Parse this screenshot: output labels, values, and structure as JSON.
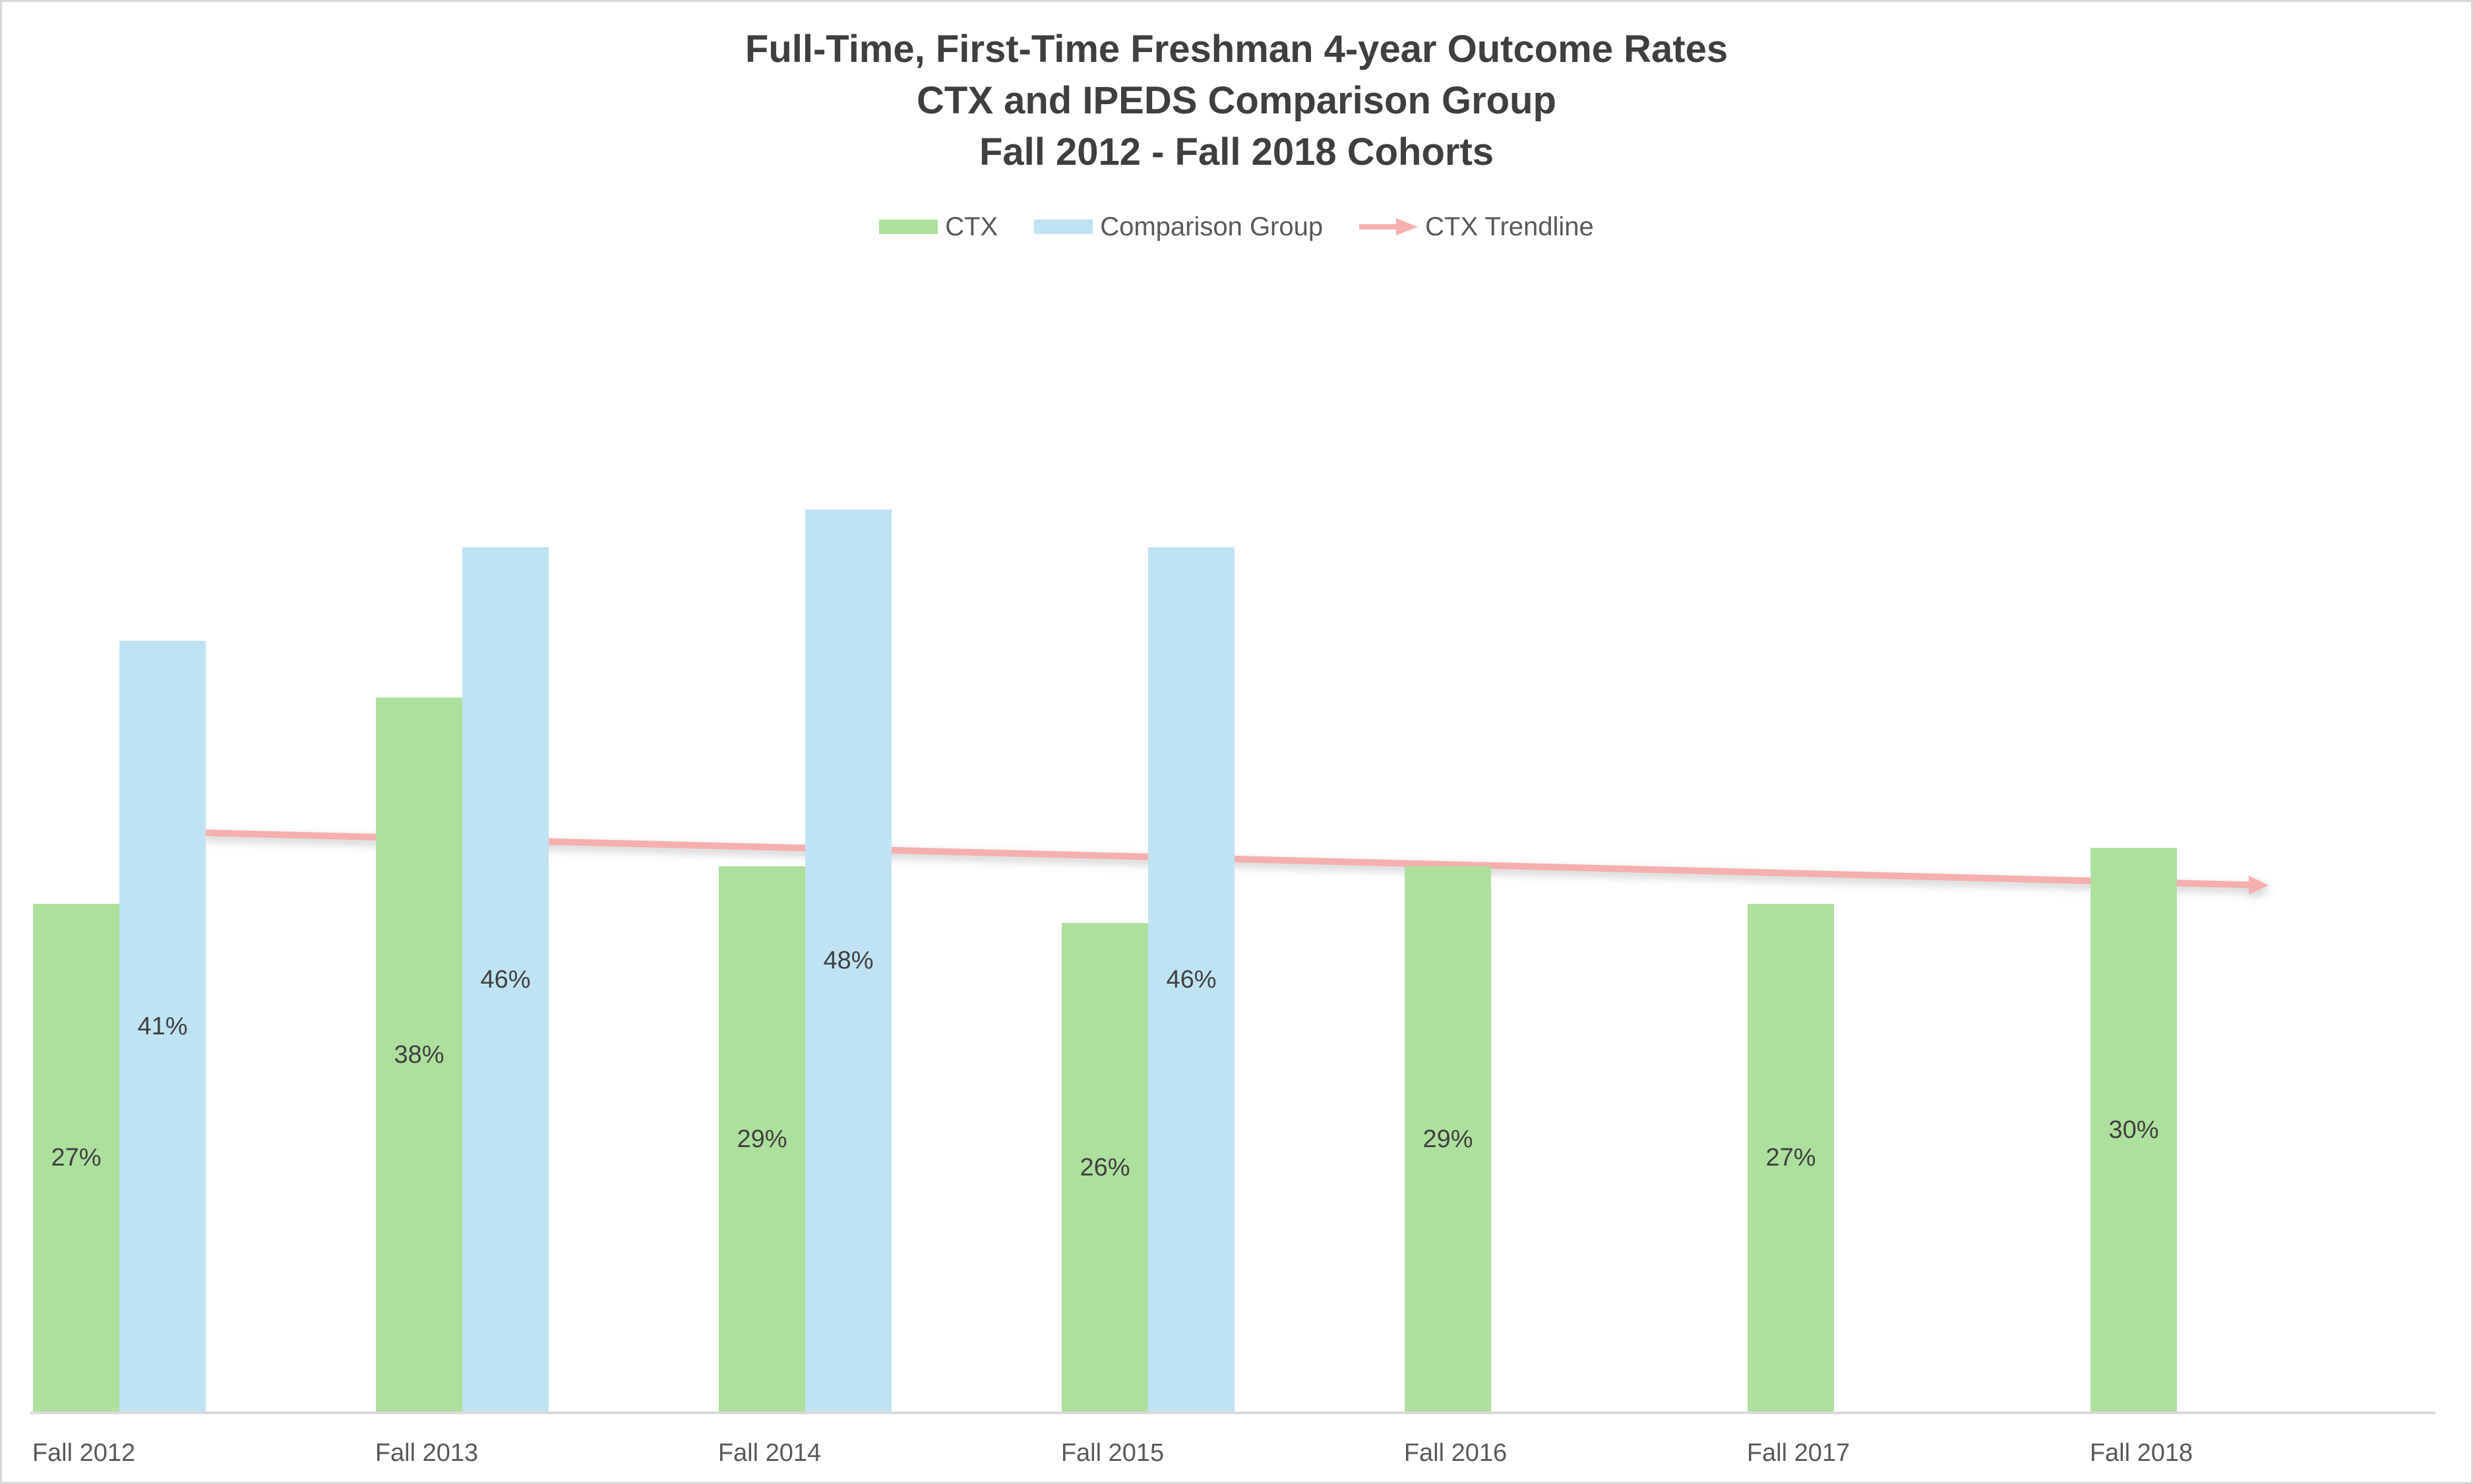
{
  "window": {
    "background": "#FFFFFF",
    "border_color": "#D8D8D8"
  },
  "title": {
    "lines": [
      "Full-Time, First-Time Freshman 4-year Outcome Rates",
      "CTX and IPEDS Comparison Group",
      "Fall 2012 - Fall 2018 Cohorts"
    ],
    "color": "#3F3F3F"
  },
  "legend": {
    "position": "top",
    "items": [
      {
        "label": "CTX",
        "swatch": "square",
        "color": "#ADE09D"
      },
      {
        "label": "Comparison Group",
        "swatch": "square",
        "color": "#BFE3F3"
      },
      {
        "label": "CTX Trendline",
        "swatch": "arrow",
        "color": "#F5AFAF"
      }
    ]
  },
  "chart_data": {
    "type": "bar",
    "title": "Full-Time, First-Time Freshman 4-year Outcome Rates; CTX and IPEDS Comparison Group; Fall 2012 - Fall 2018 Cohorts",
    "categories": [
      "Fall 2012",
      "Fall 2013",
      "Fall 2014",
      "Fall 2015",
      "Fall 2016",
      "Fall 2017",
      "Fall 2018"
    ],
    "series": [
      {
        "name": "CTX",
        "color": "#ADE09D",
        "values": [
          27,
          38,
          29,
          26,
          29,
          27,
          30
        ],
        "labels": [
          "27%",
          "38%",
          "29%",
          "26%",
          "29%",
          "27%",
          "30%"
        ]
      },
      {
        "name": "Comparison Group",
        "color": "#BFE3F3",
        "values": [
          41,
          46,
          48,
          46,
          null,
          null,
          null
        ],
        "labels": [
          "41%",
          "46%",
          "48%",
          "46%",
          null,
          null,
          null
        ]
      }
    ],
    "trendline": {
      "name": "CTX Trendline",
      "color": "#F5AFAF",
      "start_value_pct": 30.8,
      "end_value_pct": 28.0,
      "arrow_at_end": true
    },
    "xlabel": "",
    "ylabel": "",
    "ylim": [
      0,
      50
    ],
    "y_axis_visible": false,
    "gridlines": false,
    "data_label_position": "center",
    "legend_position": "top",
    "axis_line_color": "#D9D9D9",
    "axis_label_color": "#595959",
    "data_label_color": "#404040"
  }
}
